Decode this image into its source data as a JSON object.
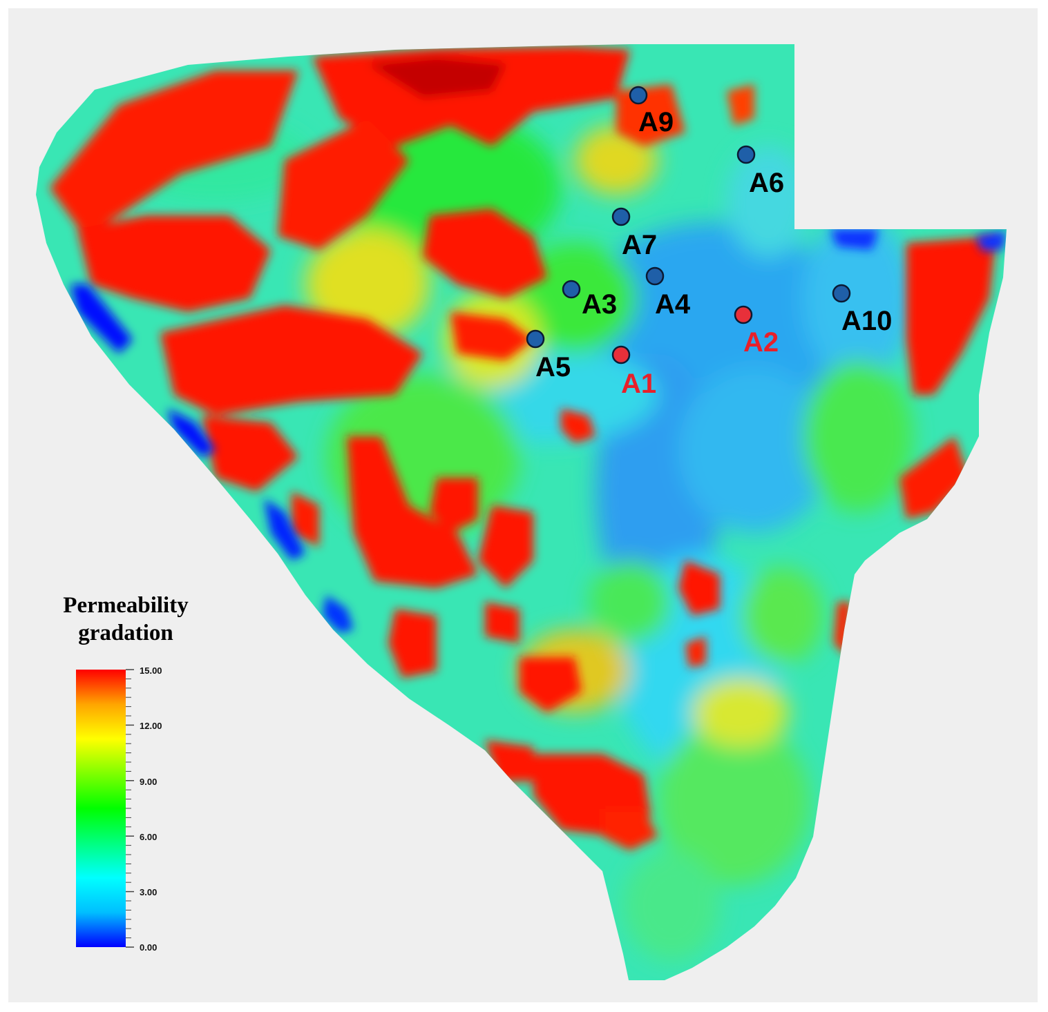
{
  "legend": {
    "title_line1": "Permeability",
    "title_line2": "gradation",
    "min": 0,
    "max": 15,
    "ticks": [
      "15.00",
      "12.00",
      "9.00",
      "6.00",
      "3.00",
      "0.00"
    ],
    "colormap": [
      "#0000ff",
      "#00bfff",
      "#00ffff",
      "#00ff7f",
      "#00ff00",
      "#7fff00",
      "#ffff00",
      "#ffa500",
      "#ff0000"
    ]
  },
  "wells": [
    {
      "id": "A9",
      "label": "A9",
      "status": "blue"
    },
    {
      "id": "A6",
      "label": "A6",
      "status": "blue"
    },
    {
      "id": "A7",
      "label": "A7",
      "status": "blue"
    },
    {
      "id": "A4",
      "label": "A4",
      "status": "blue"
    },
    {
      "id": "A3",
      "label": "A3",
      "status": "blue"
    },
    {
      "id": "A10",
      "label": "A10",
      "status": "blue"
    },
    {
      "id": "A2",
      "label": "A2",
      "status": "red"
    },
    {
      "id": "A5",
      "label": "A5",
      "status": "blue"
    },
    {
      "id": "A1",
      "label": "A1",
      "status": "red"
    }
  ],
  "colors": {
    "well_blue": "#1f5fa8",
    "well_red": "#e8303a",
    "label_blue_well": "#000000",
    "label_red_well": "#e8202a",
    "background": "#efefef"
  }
}
